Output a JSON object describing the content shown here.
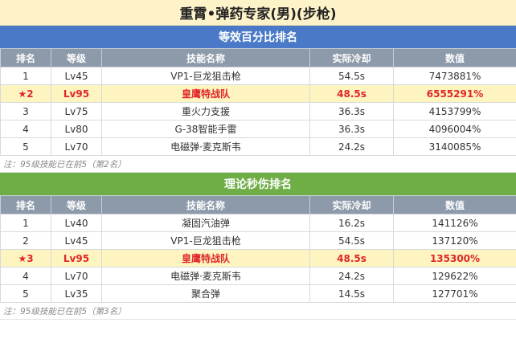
{
  "title": "重霄•弹药专家(男)(步枪)",
  "sections": [
    {
      "header": "等效百分比排名",
      "columns": [
        "排名",
        "等级",
        "技能名称",
        "实际冷却",
        "数值"
      ],
      "rows": [
        {
          "rank": "1",
          "level": "Lv45",
          "skill": "VP1-巨龙狙击枪",
          "cooldown": "54.5s",
          "value": "7473881%",
          "highlight": false
        },
        {
          "rank": "★2",
          "level": "Lv95",
          "skill": "皇鹰特战队",
          "cooldown": "48.5s",
          "value": "6555291%",
          "highlight": true
        },
        {
          "rank": "3",
          "level": "Lv75",
          "skill": "重火力支援",
          "cooldown": "36.3s",
          "value": "4153799%",
          "highlight": false
        },
        {
          "rank": "4",
          "level": "Lv80",
          "skill": "G-38智能手雷",
          "cooldown": "36.3s",
          "value": "4096004%",
          "highlight": false
        },
        {
          "rank": "5",
          "level": "Lv70",
          "skill": "电磁弹·麦克斯韦",
          "cooldown": "24.2s",
          "value": "3140085%",
          "highlight": false
        }
      ],
      "note": "注：95级技能已在前5（第2名）"
    },
    {
      "header": "理论秒伤排名",
      "columns": [
        "排名",
        "等级",
        "技能名称",
        "实际冷却",
        "数值"
      ],
      "rows": [
        {
          "rank": "1",
          "level": "Lv40",
          "skill": "凝固汽油弹",
          "cooldown": "16.2s",
          "value": "141126%",
          "highlight": false
        },
        {
          "rank": "2",
          "level": "Lv45",
          "skill": "VP1-巨龙狙击枪",
          "cooldown": "54.5s",
          "value": "137120%",
          "highlight": false
        },
        {
          "rank": "★3",
          "level": "Lv95",
          "skill": "皇鹰特战队",
          "cooldown": "48.5s",
          "value": "135300%",
          "highlight": true
        },
        {
          "rank": "4",
          "level": "Lv70",
          "skill": "电磁弹·麦克斯韦",
          "cooldown": "24.2s",
          "value": "129622%",
          "highlight": false
        },
        {
          "rank": "5",
          "level": "Lv35",
          "skill": "聚合弹",
          "cooldown": "14.5s",
          "value": "127701%",
          "highlight": false
        }
      ],
      "note": "注：95级技能已在前5（第3名）"
    }
  ]
}
